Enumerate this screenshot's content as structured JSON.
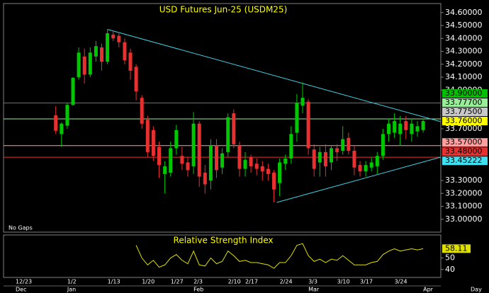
{
  "chart_data": [
    {
      "type": "candlestick",
      "title": "USD Futures Jun-25 (USDM25)",
      "categories": [
        "12/23",
        null,
        null,
        null,
        null,
        null,
        null,
        null,
        null,
        "1/2",
        null,
        null,
        null,
        null,
        null,
        null,
        "1/13",
        null,
        null,
        null,
        null,
        null,
        "1/20",
        null,
        null,
        null,
        null,
        "1/27",
        null,
        null,
        null,
        "2/3",
        null,
        null,
        null,
        null,
        null,
        "2/10",
        null,
        null,
        "2/17",
        null,
        null,
        null,
        null,
        null,
        "2/24",
        null,
        null,
        null,
        null,
        "3/3",
        null,
        null,
        null,
        null,
        "3/10",
        null,
        null,
        null,
        "3/17",
        null,
        null,
        null,
        null,
        null,
        "3/24",
        null,
        null,
        null,
        null,
        null
      ],
      "months": [
        "Dec",
        null,
        null,
        null,
        null,
        null,
        null,
        null,
        null,
        "Jan",
        null,
        null,
        null,
        null,
        null,
        null,
        null,
        null,
        null,
        null,
        null,
        null,
        null,
        null,
        null,
        null,
        null,
        null,
        null,
        null,
        null,
        "Feb",
        null,
        null,
        null,
        null,
        null,
        null,
        null,
        null,
        null,
        null,
        null,
        null,
        null,
        null,
        null,
        null,
        null,
        null,
        null,
        "Mar",
        null,
        null,
        null,
        null,
        null,
        null,
        null,
        null,
        null,
        null,
        null,
        null,
        null,
        null,
        null,
        null,
        null,
        null,
        null,
        "Apr"
      ],
      "open": [
        null,
        null,
        null,
        null,
        null,
        null,
        null,
        33.805,
        33.66,
        33.725,
        33.885,
        34.1,
        34.26,
        34.12,
        34.26,
        34.33,
        34.22,
        34.43,
        34.42,
        34.37,
        34.29,
        34.18,
        33.94,
        33.77,
        33.69,
        33.56,
        33.35,
        33.36,
        33.55,
        33.49,
        33.44,
        33.41,
        33.74,
        33.36,
        33.3,
        33.57,
        33.4,
        33.52,
        33.82,
        33.57,
        33.39,
        33.48,
        33.43,
        33.41,
        33.39,
        33.36,
        33.28,
        33.43,
        33.47,
        33.67,
        33.88,
        33.91,
        33.54,
        33.44,
        33.52,
        33.44,
        33.55,
        33.53,
        33.63,
        33.53,
        33.42,
        33.37,
        33.4,
        33.41,
        33.49,
        33.66,
        33.67,
        33.66,
        33.76,
        33.66,
        33.68,
        33.69
      ],
      "high": [
        null,
        null,
        null,
        null,
        null,
        null,
        null,
        33.875,
        33.75,
        33.9,
        34.1,
        34.33,
        34.32,
        34.33,
        34.38,
        34.36,
        34.47,
        34.46,
        34.44,
        34.4,
        34.32,
        34.2,
        33.96,
        33.8,
        33.72,
        33.6,
        33.45,
        33.6,
        33.73,
        33.56,
        33.48,
        33.83,
        33.76,
        33.42,
        33.62,
        33.62,
        33.55,
        33.82,
        33.85,
        33.6,
        33.52,
        33.5,
        33.47,
        33.45,
        33.43,
        33.38,
        33.47,
        33.5,
        33.72,
        33.97,
        34.06,
        33.93,
        33.58,
        33.56,
        33.58,
        33.57,
        33.58,
        33.72,
        33.67,
        33.57,
        33.45,
        33.45,
        33.48,
        33.52,
        33.7,
        33.78,
        33.82,
        33.8,
        33.8,
        33.78,
        33.76,
        33.78
      ],
      "low": [
        null,
        null,
        null,
        null,
        null,
        null,
        null,
        33.66,
        33.56,
        33.7,
        33.88,
        34.08,
        34.05,
        34.1,
        34.22,
        34.15,
        34.2,
        34.38,
        34.33,
        34.2,
        34.08,
        33.92,
        33.7,
        33.48,
        33.45,
        33.32,
        33.2,
        33.33,
        33.5,
        33.38,
        33.33,
        33.35,
        33.25,
        33.2,
        33.23,
        33.32,
        33.35,
        33.48,
        33.55,
        33.33,
        33.33,
        33.36,
        33.34,
        33.3,
        33.3,
        33.13,
        33.18,
        33.38,
        33.43,
        33.6,
        33.82,
        33.5,
        33.33,
        33.33,
        33.33,
        33.38,
        33.45,
        33.5,
        33.5,
        33.34,
        33.33,
        33.33,
        33.37,
        33.35,
        33.46,
        33.6,
        33.63,
        33.57,
        33.62,
        33.6,
        33.64,
        33.67
      ],
      "close": [
        null,
        null,
        null,
        null,
        null,
        null,
        null,
        33.685,
        33.74,
        33.885,
        34.095,
        34.29,
        34.12,
        34.29,
        34.34,
        34.22,
        34.44,
        34.4,
        34.37,
        34.23,
        34.15,
        33.99,
        33.74,
        33.52,
        33.49,
        33.42,
        33.41,
        33.55,
        33.69,
        33.43,
        33.38,
        33.74,
        33.33,
        33.27,
        33.57,
        33.38,
        33.51,
        33.79,
        33.58,
        33.39,
        33.46,
        33.41,
        33.39,
        33.37,
        33.35,
        33.23,
        33.44,
        33.47,
        33.66,
        33.9,
        33.94,
        33.55,
        33.39,
        33.52,
        33.41,
        33.55,
        33.52,
        33.62,
        33.53,
        33.4,
        33.37,
        33.42,
        33.44,
        33.49,
        33.66,
        33.74,
        33.76,
        33.74,
        33.69,
        33.74,
        33.72,
        33.76
      ],
      "up_color": "#00c800",
      "down_color": "#e83030",
      "ylim": [
        32.9,
        34.67
      ],
      "yticks": [
        {
          "value": 34.6,
          "label": "34.60000"
        },
        {
          "value": 34.5,
          "label": "34.50000"
        },
        {
          "value": 34.4,
          "label": "34.40000"
        },
        {
          "value": 34.3,
          "label": "34.30000"
        },
        {
          "value": 34.2,
          "label": "34.20000"
        },
        {
          "value": 34.1,
          "label": "34.10000"
        },
        {
          "value": 34.0,
          "label": "34.00000"
        },
        {
          "value": 33.7,
          "label": "33.70000"
        },
        {
          "value": 33.3,
          "label": "33.30000"
        },
        {
          "value": 33.2,
          "label": "33.20000"
        },
        {
          "value": 33.1,
          "label": "33.10000"
        },
        {
          "value": 33.0,
          "label": "33.00000"
        }
      ],
      "levels": [
        {
          "value": 33.9,
          "label": "33.90000",
          "color": "#00c000"
        },
        {
          "value": 33.777,
          "label": "33.77700",
          "color": "#98ee98"
        },
        {
          "value": 33.57,
          "label": "33.57000",
          "color": "#ffa0a0"
        },
        {
          "value": 33.48,
          "label": "33.48000",
          "color": "#e83030"
        }
      ],
      "markers": [
        {
          "value": 33.775,
          "label": "33.77500",
          "color": "#c8c8c8"
        },
        {
          "value": 33.76,
          "label": "33.76000",
          "color": "#ffff00"
        },
        {
          "value": 33.45222,
          "label": "33.45222",
          "color": "#40e0f0"
        }
      ],
      "trendlines": [
        {
          "x": [
            16,
            74
          ],
          "y": [
            34.47,
            33.756
          ],
          "color": "#40d0e0"
        },
        {
          "x": [
            45.5,
            74
          ],
          "y": [
            33.13,
            33.48
          ],
          "color": "#40d0e0"
        }
      ],
      "note": "No Gaps",
      "period": "Day"
    },
    {
      "type": "line",
      "title": "Relative Strength Index",
      "color": "#e0e000",
      "values": [
        null,
        null,
        null,
        null,
        null,
        null,
        null,
        null,
        null,
        null,
        null,
        null,
        null,
        null,
        null,
        null,
        null,
        null,
        null,
        null,
        null,
        61,
        50,
        44,
        48,
        42,
        44,
        50,
        53,
        48,
        45,
        56,
        44,
        43,
        50,
        45,
        47,
        56,
        52,
        47,
        48,
        46,
        46,
        45,
        44,
        41,
        46,
        46,
        52,
        61,
        62.5,
        52,
        47,
        49,
        46,
        49,
        48,
        52,
        48,
        44,
        44,
        44,
        46,
        47,
        53,
        56,
        58,
        56,
        57,
        58,
        57,
        58.11
      ],
      "ylim": [
        33.1,
        70
      ],
      "yticks": [
        50,
        40
      ]
    }
  ]
}
